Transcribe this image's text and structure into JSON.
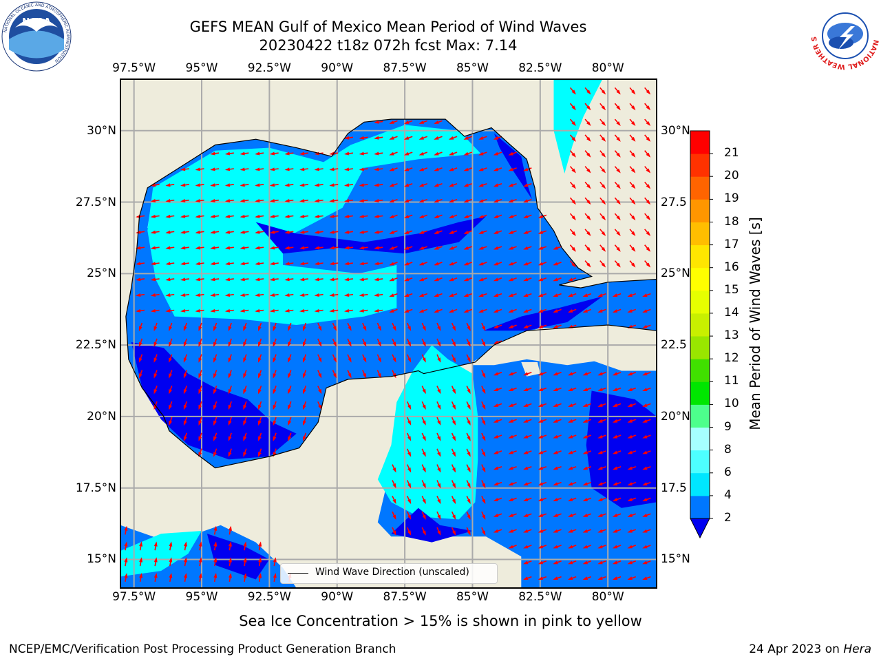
{
  "title": {
    "line1": "GEFS MEAN Gulf of Mexico Mean Period of Wind Waves",
    "line2": "20230422 t18z 072h fcst   Max: 7.14"
  },
  "map": {
    "lon_range": [
      -98.0,
      -78.2
    ],
    "lat_range": [
      14.0,
      31.8
    ],
    "lon_ticks": [
      -97.5,
      -95,
      -92.5,
      -90,
      -87.5,
      -85,
      -82.5,
      -80
    ],
    "lat_ticks": [
      15,
      17.5,
      20,
      22.5,
      25,
      27.5,
      30
    ],
    "lon_labels": [
      "97.5°W",
      "95°W",
      "92.5°W",
      "90°W",
      "87.5°W",
      "85°W",
      "82.5°W",
      "80°W"
    ],
    "lat_labels_left": [
      "15°N",
      "17.5°N",
      "20°N",
      "22.5°N",
      "25°N",
      "27.5°N",
      "30°N"
    ],
    "lat_labels_right": [
      "15°N",
      "17.5",
      "20°N",
      "22.5",
      "25°N",
      "27.5",
      "30°N"
    ],
    "grid": true,
    "land_color": "#eeecdc",
    "arrow_color": "#ff0000",
    "regions": [
      {
        "level": "2-4",
        "color": "#0077ff"
      },
      {
        "level": "4-6",
        "color": "#00ffff"
      },
      {
        "level": "6-8",
        "color": "#66ffff"
      },
      {
        "level": "<2",
        "color": "#0000f0"
      }
    ]
  },
  "legend": {
    "label": "Wind Wave Direction (unscaled)",
    "placement": "lower-center"
  },
  "colorbar": {
    "label": "Mean Period of Wind Waves [s]",
    "ticks": [
      "2",
      "4",
      "6",
      "8",
      "9",
      "10",
      "11",
      "12",
      "13",
      "14",
      "15",
      "16",
      "17",
      "18",
      "19",
      "20",
      "21"
    ],
    "colors": [
      "#0077ff",
      "#00e6ff",
      "#4dffff",
      "#a6ffff",
      "#4dff8c",
      "#00e600",
      "#40e000",
      "#99e600",
      "#c8f000",
      "#e6ff00",
      "#ffff00",
      "#ffe600",
      "#ffbe00",
      "#ff9600",
      "#ff6400",
      "#ff3200",
      "#ff0000"
    ],
    "extend_color": "#0000f0"
  },
  "subtitle": "Sea Ice Concentration > 15% is shown in pink to yellow",
  "footer": {
    "left": "NCEP/EMC/Verification Post Processing Product Generation Branch",
    "right_date": "24 Apr 2023 on ",
    "right_machine": "Hera"
  },
  "logos": {
    "noaa": {
      "text": "NOAA",
      "ring_text": "NATIONAL OCEANIC AND ATMOSPHERIC ADMINISTRATION"
    },
    "nws": {
      "ring_text": "NATIONAL WEATHER SERVICE"
    }
  },
  "chart_data": {
    "type": "heatmap",
    "title": "GEFS MEAN Gulf of Mexico Mean Period of Wind Waves",
    "subtitle": "20230422 t18z 072h fcst   Max: 7.14",
    "xlim": [
      -98.0,
      -78.2
    ],
    "ylim": [
      14.0,
      31.8
    ],
    "max_value": 7.14,
    "colorbar_range": [
      2,
      21
    ],
    "units": "s"
  }
}
